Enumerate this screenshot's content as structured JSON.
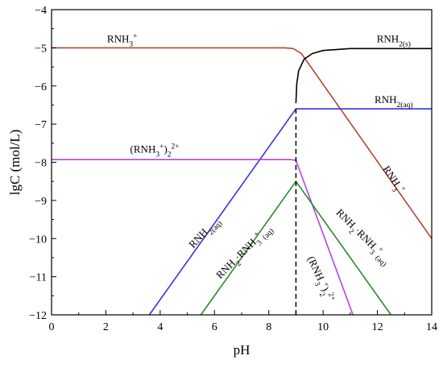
{
  "chart_data": {
    "type": "line",
    "xlabel": "pH",
    "ylabel": "lgC (mol/L)",
    "xlim": [
      0,
      14
    ],
    "ylim": [
      -12,
      -4
    ],
    "xticks": [
      0,
      2,
      4,
      6,
      8,
      10,
      12,
      14
    ],
    "yticks": [
      -4,
      -5,
      -6,
      -7,
      -8,
      -9,
      -10,
      -11,
      -12
    ],
    "grid": false,
    "series": [
      {
        "color": "#b5452c",
        "x": [
          0,
          8.6,
          8.9,
          9.2,
          14
        ],
        "y": [
          -5.0,
          -5.0,
          -5.02,
          -5.15,
          -10.0
        ]
      },
      {
        "color": "#000000",
        "x": [
          9.0,
          9.03,
          9.1,
          9.3,
          9.6,
          10.0,
          11.0,
          14.0
        ],
        "y": [
          -6.45,
          -5.95,
          -5.6,
          -5.3,
          -5.15,
          -5.07,
          -5.02,
          -5.02
        ]
      },
      {
        "color": "#3333dd",
        "x": [
          3.6,
          9.0,
          14.0
        ],
        "y": [
          -12.0,
          -6.6,
          -6.6
        ]
      },
      {
        "color": "#b344e6",
        "x": [
          0,
          8.8,
          9.0,
          11.1
        ],
        "y": [
          -7.93,
          -7.93,
          -7.95,
          -12.0
        ]
      },
      {
        "color": "#2a8a2a",
        "x": [
          5.5,
          9.0,
          12.5
        ],
        "y": [
          -12.0,
          -8.5,
          -12.0
        ]
      }
    ],
    "vline": {
      "x": 9.0,
      "y_from": -12.0,
      "y_to": -6.6
    },
    "annotations": [
      {
        "base": "RNH",
        "sub": "3",
        "sup": "+",
        "x": 2.6,
        "y": -4.85,
        "rotate": 0
      },
      {
        "base": "RNH",
        "sub": "2(s)",
        "x": 12.6,
        "y": -4.85,
        "rotate": 0
      },
      {
        "base": "RNH",
        "sub": "2(aq)",
        "x": 12.6,
        "y": -6.45,
        "rotate": 0
      },
      {
        "base": "(RNH",
        "sub2": "3",
        "sup2": "+",
        "tail": ")",
        "sub": "2",
        "sup": "2+",
        "x": 3.8,
        "y": -7.75,
        "rotate": 0
      },
      {
        "base": "RNH",
        "sub": "3",
        "sup": "+",
        "x": 12.5,
        "y": -8.5,
        "rotate": 56
      },
      {
        "base": "RNH",
        "sub": "2(aq)",
        "x": 5.7,
        "y": -9.9,
        "rotate": -47
      },
      {
        "base": "RNH",
        "sub": "2",
        "mid": "·RNH",
        "sub2": "3",
        "sup2": "+",
        "sub3": "(aq)",
        "x": 7.15,
        "y": -10.4,
        "rotate": -45
      },
      {
        "base": "RNH",
        "sub": "2",
        "mid": "·RNH",
        "sub2": "3",
        "sup2": "+",
        "sub3": "(aq)",
        "x": 11.4,
        "y": -10.0,
        "rotate": 45
      },
      {
        "base": "(RNH",
        "sub2": "3",
        "sup2": "+",
        "tail": ")",
        "sub": "2",
        "sup": "2+",
        "x": 9.8,
        "y": -11.1,
        "rotate": 65
      }
    ]
  }
}
